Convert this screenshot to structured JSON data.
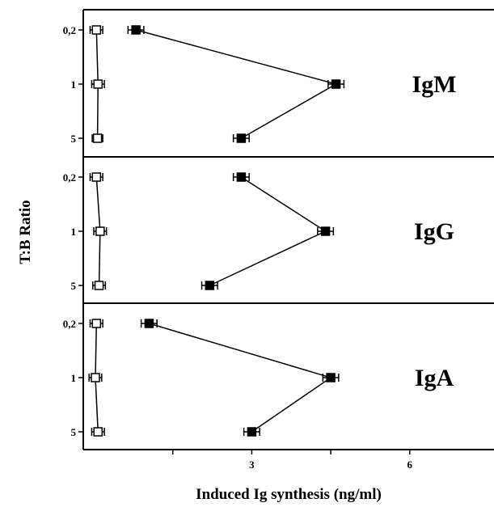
{
  "chart_data": {
    "type": "line",
    "orientation": "horizontal",
    "xlabel": "Induced Ig synthesis (ng/ml)",
    "ylabel": "T:B Ratio",
    "categories": [
      "0,2",
      "1",
      "5"
    ],
    "xlim": [
      -0.2,
      7.6
    ],
    "xticks": [
      {
        "value": 1.5,
        "label": ""
      },
      {
        "value": 3,
        "label": "3"
      },
      {
        "value": 4.5,
        "label": ""
      },
      {
        "value": 6,
        "label": "6"
      }
    ],
    "marker_styles": {
      "open": "open-square",
      "filled": "filled-square"
    },
    "panels": [
      {
        "label": "IgM",
        "series": [
          {
            "marker": "open",
            "values": [
              0.05,
              0.08,
              0.07
            ],
            "errors": [
              0.12,
              0.12,
              0.1
            ]
          },
          {
            "marker": "filled",
            "values": [
              0.8,
              4.6,
              2.8
            ],
            "errors": [
              0.15,
              0.15,
              0.15
            ]
          }
        ]
      },
      {
        "label": "IgG",
        "series": [
          {
            "marker": "open",
            "values": [
              0.05,
              0.12,
              0.1
            ],
            "errors": [
              0.12,
              0.12,
              0.12
            ]
          },
          {
            "marker": "filled",
            "values": [
              2.8,
              4.4,
              2.2
            ],
            "errors": [
              0.15,
              0.15,
              0.15
            ]
          }
        ]
      },
      {
        "label": "IgA",
        "series": [
          {
            "marker": "open",
            "values": [
              0.05,
              0.03,
              0.08
            ],
            "errors": [
              0.12,
              0.12,
              0.12
            ]
          },
          {
            "marker": "filled",
            "values": [
              1.05,
              4.5,
              3.0
            ],
            "errors": [
              0.15,
              0.15,
              0.15
            ]
          }
        ]
      }
    ]
  }
}
